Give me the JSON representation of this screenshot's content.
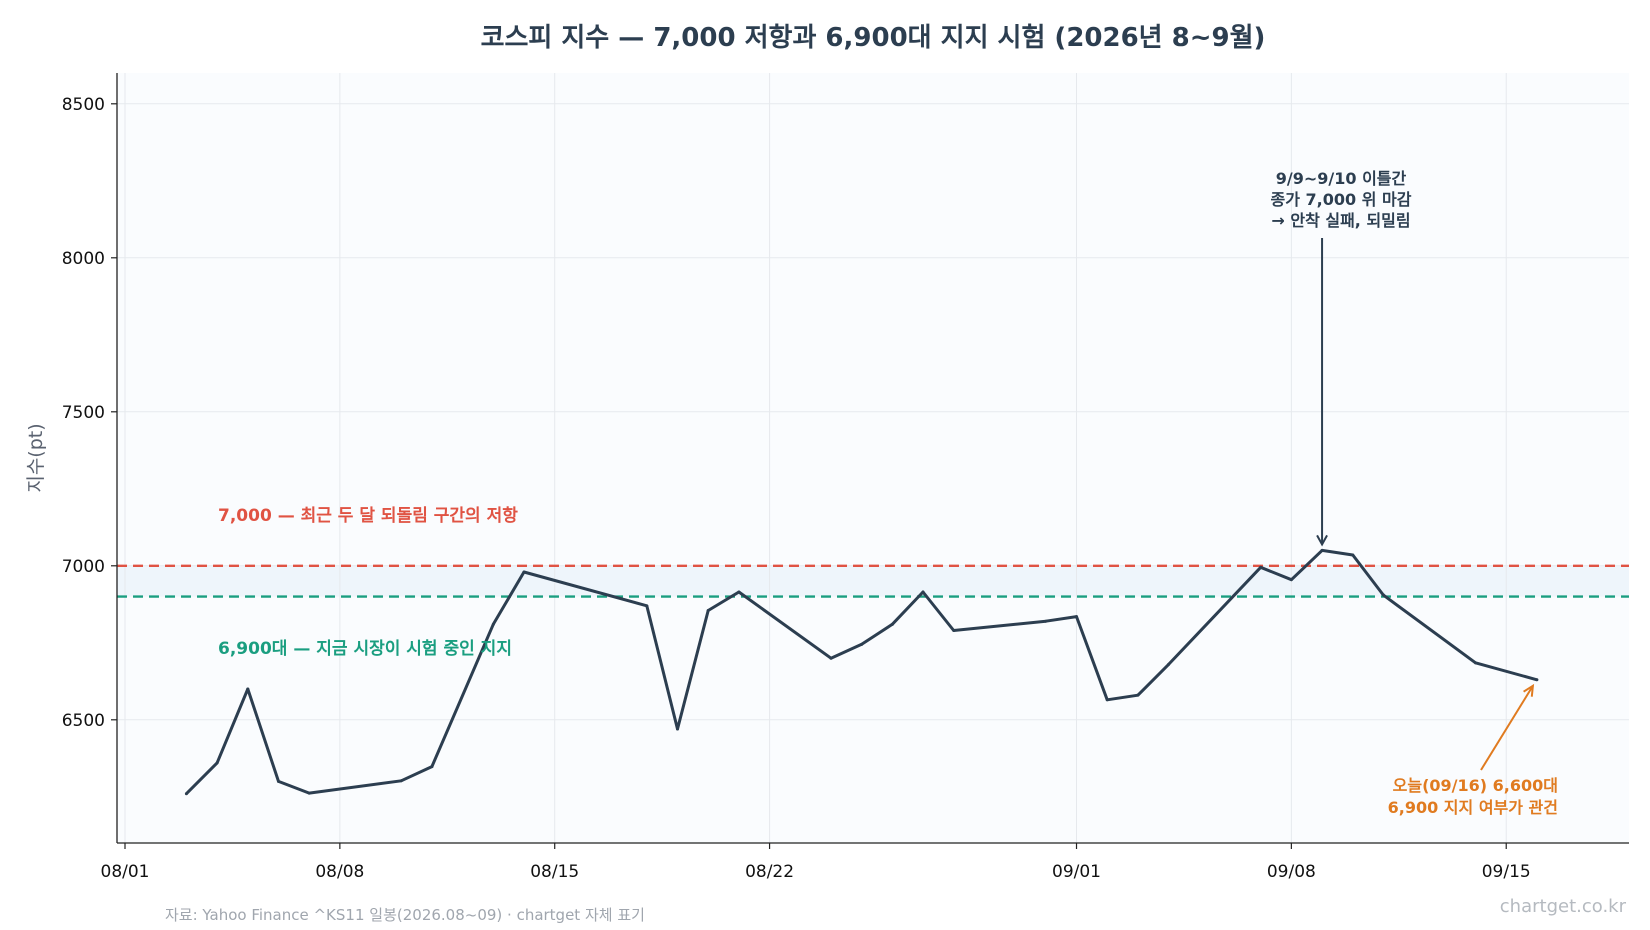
{
  "chart_data": {
    "type": "line",
    "title": "코스피 지수 — 7,000 저항과 6,900대 지지 시험 (2026년 8~9월)",
    "ylabel": "지수(pt)",
    "xlabel": "",
    "ylim": [
      6100,
      8600
    ],
    "xlim": [
      "2026-08-01",
      "2026-09-19"
    ],
    "x_ticks": [
      {
        "date": "2026-08-01",
        "label": "08/01"
      },
      {
        "date": "2026-08-08",
        "label": "08/08"
      },
      {
        "date": "2026-08-15",
        "label": "08/15"
      },
      {
        "date": "2026-08-22",
        "label": "08/22"
      },
      {
        "date": "2026-09-01",
        "label": "09/01"
      },
      {
        "date": "2026-09-08",
        "label": "09/08"
      },
      {
        "date": "2026-09-15",
        "label": "09/15"
      }
    ],
    "y_ticks": [
      {
        "value": 6500,
        "label": "6500"
      },
      {
        "value": 7000,
        "label": "7000"
      },
      {
        "value": 7500,
        "label": "7500"
      },
      {
        "value": 8000,
        "label": "8000"
      },
      {
        "value": 8500,
        "label": "8500"
      }
    ],
    "grid": true,
    "series": [
      {
        "color": "#2c3e50",
        "x": [
          "2026-08-03",
          "2026-08-04",
          "2026-08-05",
          "2026-08-06",
          "2026-08-07",
          "2026-08-10",
          "2026-08-11",
          "2026-08-13",
          "2026-08-14",
          "2026-08-18",
          "2026-08-19",
          "2026-08-20",
          "2026-08-21",
          "2026-08-24",
          "2026-08-25",
          "2026-08-26",
          "2026-08-27",
          "2026-08-28",
          "2026-08-31",
          "2026-09-01",
          "2026-09-02",
          "2026-09-03",
          "2026-09-04",
          "2026-09-07",
          "2026-09-08",
          "2026-09-09",
          "2026-09-10",
          "2026-09-11",
          "2026-09-14",
          "2026-09-16"
        ],
        "values": [
          6260,
          6360,
          6600,
          6300,
          6262,
          6302,
          6348,
          6810,
          6980,
          6870,
          6470,
          6855,
          6915,
          6700,
          6745,
          6810,
          6915,
          6790,
          6820,
          6835,
          6565,
          6580,
          6680,
          6995,
          6955,
          7050,
          7035,
          6905,
          6685,
          6630
        ]
      }
    ],
    "reference_lines": [
      {
        "value": 7000,
        "color": "#e05343",
        "style": "dashed",
        "label": "7,000 — 최근 두 달 되돌림 구간의 저항"
      },
      {
        "value": 6900,
        "color": "#1a9e80",
        "style": "dashed",
        "label": "6,900대 — 지금 시장이 시험 중인 지지"
      }
    ],
    "band": {
      "from": 6900,
      "to": 7000,
      "color": "#eef5fb"
    },
    "annotations": [
      {
        "name": "peak",
        "lines": [
          "9/9~9/10 이틀간",
          "종가 7,000 위 마감",
          "→ 안착 실패, 되밀림"
        ],
        "target": {
          "date": "2026-09-09",
          "value": 7050
        },
        "color": "#2c3e50"
      },
      {
        "name": "today",
        "lines": [
          "오늘(09/16) 6,600대",
          "6,900 지지 여부가 관건"
        ],
        "target": {
          "date": "2026-09-16",
          "value": 6630
        },
        "color": "#e07b20"
      }
    ],
    "source": "자료: Yahoo Finance ^KS11 일봉(2026.08~09) · chartget 자체 표기",
    "brand": "chartget.co.kr"
  }
}
